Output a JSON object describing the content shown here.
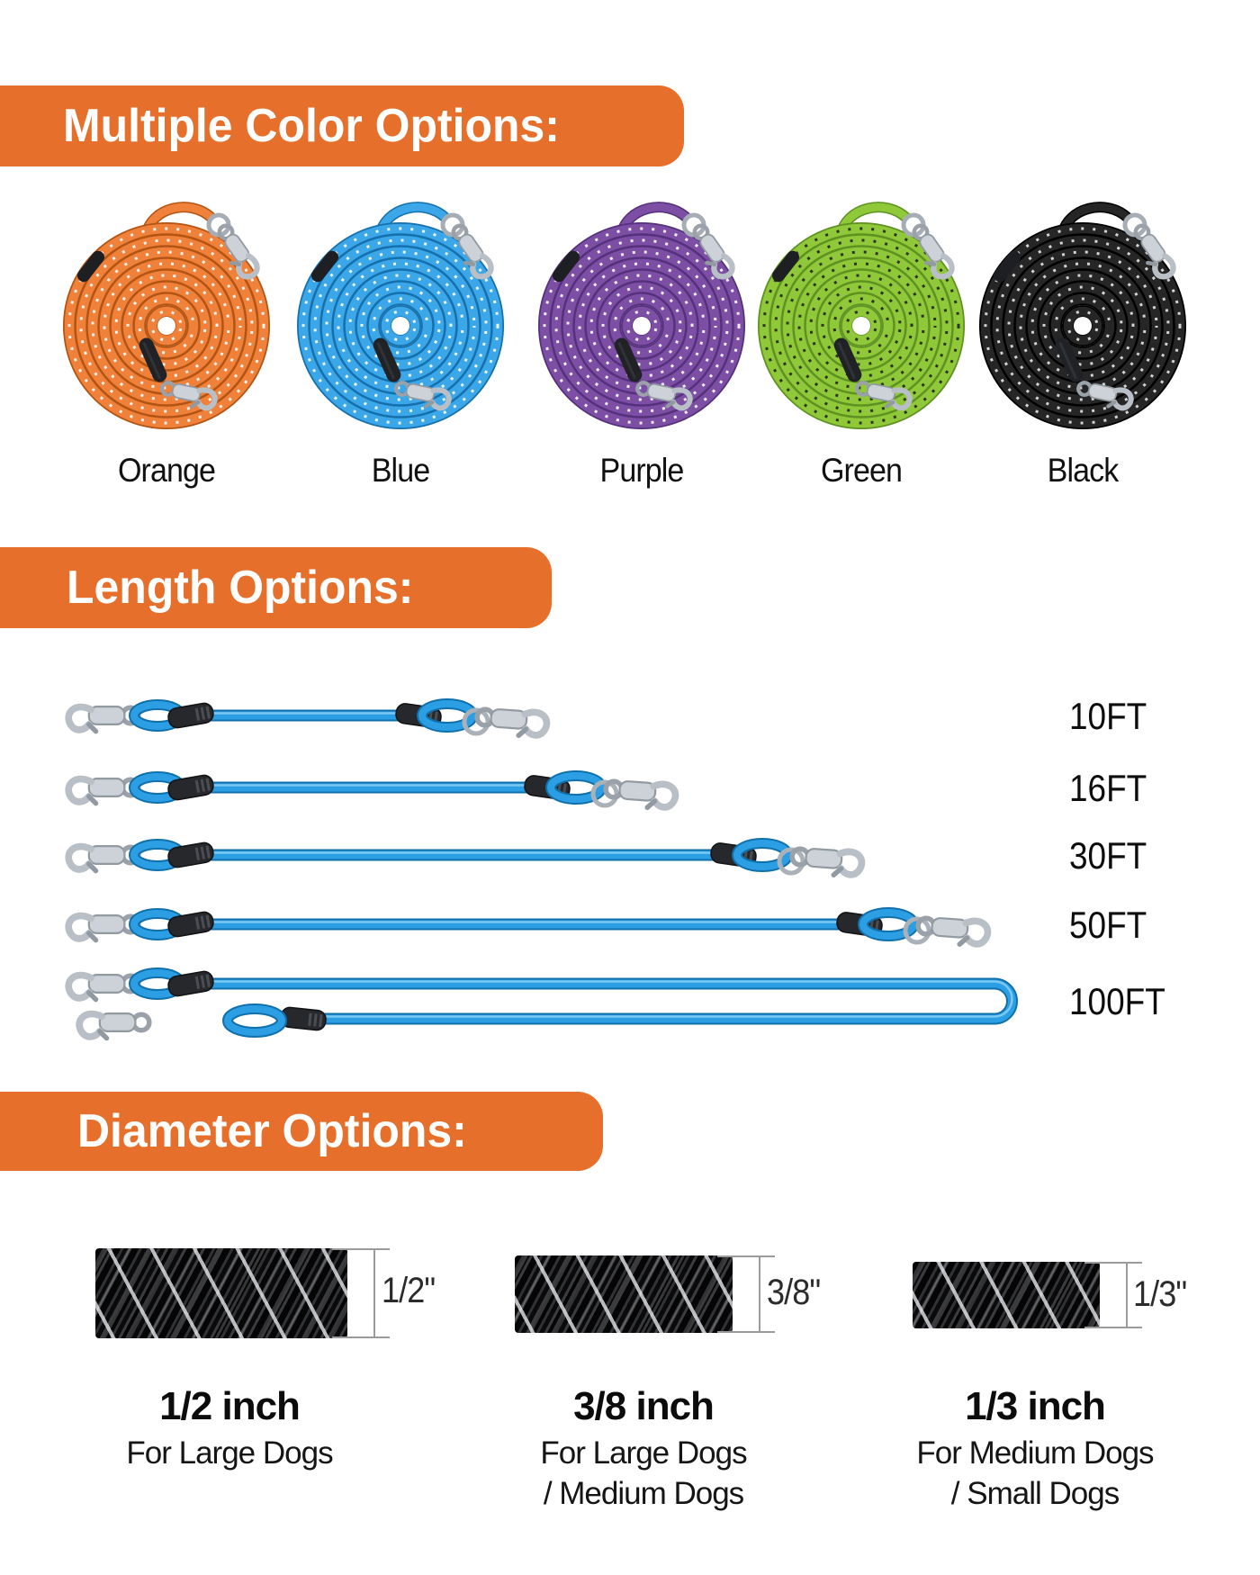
{
  "accent_color": "#E56F2B",
  "rope_blue": "#2B9EE4",
  "sections": {
    "colors": {
      "heading": "Multiple Color Options:"
    },
    "lengths": {
      "heading": "Length Options:"
    },
    "diameters": {
      "heading": "Diameter Options:"
    }
  },
  "color_options": [
    {
      "label": "Orange",
      "rope": "#F0813B",
      "rope_dark": "#B35413",
      "dots": "#ffffff"
    },
    {
      "label": "Blue",
      "rope": "#3BA7E8",
      "rope_dark": "#1570AD",
      "dots": "#ffffff"
    },
    {
      "label": "Purple",
      "rope": "#7C4FA5",
      "rope_dark": "#55317C",
      "dots": "#ffffff"
    },
    {
      "label": "Green",
      "rope": "#8FC93A",
      "rope_dark": "#5F9121",
      "dots": "#222222"
    },
    {
      "label": "Black",
      "rope": "#262626",
      "rope_dark": "#000000",
      "dots": "#e8e8e8"
    }
  ],
  "length_options": [
    {
      "label": "10FT",
      "feet": 10
    },
    {
      "label": "16FT",
      "feet": 16
    },
    {
      "label": "30FT",
      "feet": 30
    },
    {
      "label": "50FT",
      "feet": 50
    },
    {
      "label": "100FT",
      "feet": 100
    }
  ],
  "diameter_options": [
    {
      "size_label": "1/2\"",
      "heading": "1/2 inch",
      "desc_lines": [
        "For Large Dogs"
      ]
    },
    {
      "size_label": "3/8\"",
      "heading": "3/8 inch",
      "desc_lines": [
        "For Large Dogs",
        "/ Medium Dogs"
      ]
    },
    {
      "size_label": "1/3\"",
      "heading": "1/3 inch",
      "desc_lines": [
        "For Medium Dogs",
        "/ Small Dogs"
      ]
    }
  ]
}
